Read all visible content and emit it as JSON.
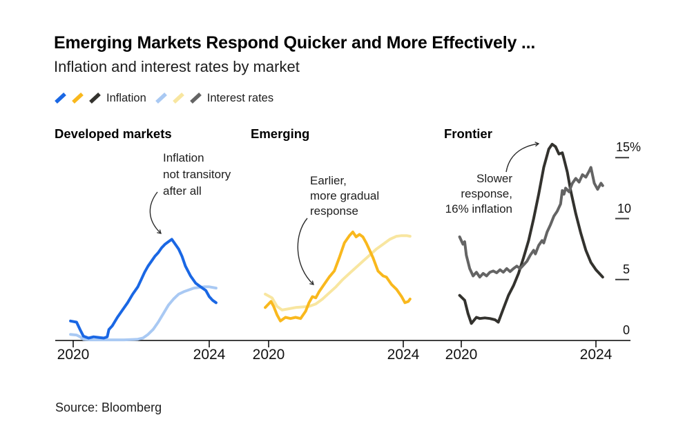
{
  "header": {
    "title": "Emerging Markets Respond Quicker and More Effectively ...",
    "subtitle": "Inflation and interest rates by market"
  },
  "legend": {
    "inflation_label": "Inflation",
    "interest_label": "Interest rates",
    "position": "top"
  },
  "source": "Source: Bloomberg",
  "chart_data": [
    {
      "type": "line",
      "title": "Developed markets",
      "x_tick_years": [
        2020,
        2024
      ],
      "x_tick_labels": [
        "2020",
        "2024"
      ],
      "y_tick_values": [
        15,
        10,
        5,
        0
      ],
      "y_tick_labels": [
        "15%",
        "10",
        "5",
        "0"
      ],
      "ylim": [
        0,
        17
      ],
      "xlim": [
        2019.9,
        2024.3
      ],
      "grid": false,
      "annotation": "Inflation\nnot transitory\nafter all",
      "series": [
        {
          "name": "Inflation",
          "color": "#1a67e4",
          "x": [
            2019.92,
            2020.1,
            2020.2,
            2020.3,
            2020.45,
            2020.6,
            2020.75,
            2020.9,
            2021.0,
            2021.05,
            2021.15,
            2021.3,
            2021.45,
            2021.6,
            2021.75,
            2021.9,
            2022.0,
            2022.1,
            2022.2,
            2022.3,
            2022.4,
            2022.5,
            2022.6,
            2022.7,
            2022.8,
            2022.9,
            2023.0,
            2023.1,
            2023.2,
            2023.3,
            2023.45,
            2023.6,
            2023.7,
            2023.8,
            2023.9,
            2024.0,
            2024.1,
            2024.2
          ],
          "y": [
            1.6,
            1.5,
            0.9,
            0.35,
            0.2,
            0.3,
            0.25,
            0.2,
            0.3,
            0.9,
            1.2,
            1.9,
            2.5,
            3.1,
            3.8,
            4.4,
            5.0,
            5.6,
            6.1,
            6.5,
            6.9,
            7.2,
            7.6,
            7.9,
            8.1,
            8.3,
            7.9,
            7.5,
            6.9,
            6.1,
            5.3,
            4.7,
            4.5,
            4.3,
            4.1,
            3.6,
            3.3,
            3.1
          ]
        },
        {
          "name": "Interest rates",
          "color": "#a9c9f3",
          "x": [
            2019.92,
            2020.1,
            2020.2,
            2020.3,
            2020.5,
            2020.75,
            2021.0,
            2021.25,
            2021.5,
            2021.75,
            2021.9,
            2022.05,
            2022.2,
            2022.35,
            2022.5,
            2022.65,
            2022.8,
            2022.95,
            2023.1,
            2023.25,
            2023.4,
            2023.55,
            2023.7,
            2023.85,
            2024.0,
            2024.1,
            2024.2
          ],
          "y": [
            0.5,
            0.45,
            0.3,
            0.1,
            0.05,
            0.05,
            0.05,
            0.05,
            0.05,
            0.08,
            0.1,
            0.2,
            0.5,
            0.9,
            1.5,
            2.2,
            2.9,
            3.4,
            3.8,
            4.0,
            4.15,
            4.3,
            4.35,
            4.4,
            4.4,
            4.35,
            4.3
          ]
        }
      ]
    },
    {
      "type": "line",
      "title": "Emerging",
      "x_tick_years": [
        2020,
        2024
      ],
      "x_tick_labels": [
        "2020",
        "2024"
      ],
      "y_tick_values": [
        15,
        10,
        5,
        0
      ],
      "y_tick_labels": [
        "15%",
        "10",
        "5",
        "0"
      ],
      "ylim": [
        0,
        17
      ],
      "xlim": [
        2019.9,
        2024.3
      ],
      "grid": false,
      "annotation": "Earlier,\nmore gradual\nresponse",
      "series": [
        {
          "name": "Inflation",
          "color": "#f9b81d",
          "x": [
            2019.9,
            2020.07,
            2020.15,
            2020.25,
            2020.35,
            2020.5,
            2020.65,
            2020.8,
            2020.95,
            2021.1,
            2021.2,
            2021.3,
            2021.4,
            2021.5,
            2021.65,
            2021.8,
            2021.95,
            2022.1,
            2022.25,
            2022.4,
            2022.5,
            2022.6,
            2022.7,
            2022.8,
            2022.9,
            2023.0,
            2023.1,
            2023.25,
            2023.4,
            2023.5,
            2023.65,
            2023.8,
            2023.95,
            2024.05,
            2024.15,
            2024.2
          ],
          "y": [
            2.7,
            3.2,
            2.8,
            2.1,
            1.6,
            1.9,
            1.8,
            1.9,
            1.8,
            2.4,
            3.1,
            3.6,
            3.5,
            4.0,
            4.6,
            5.2,
            5.7,
            6.8,
            8.0,
            8.6,
            8.9,
            8.5,
            8.7,
            8.5,
            8.0,
            7.4,
            6.8,
            5.7,
            5.3,
            5.2,
            4.6,
            4.2,
            3.6,
            3.1,
            3.2,
            3.4
          ]
        },
        {
          "name": "Interest rates",
          "color": "#f8e6a0",
          "x": [
            2019.9,
            2020.1,
            2020.25,
            2020.4,
            2020.6,
            2020.8,
            2021.0,
            2021.2,
            2021.4,
            2021.6,
            2021.8,
            2022.0,
            2022.2,
            2022.4,
            2022.6,
            2022.8,
            2023.0,
            2023.2,
            2023.4,
            2023.6,
            2023.8,
            2023.95,
            2024.1,
            2024.2
          ],
          "y": [
            3.8,
            3.5,
            2.8,
            2.5,
            2.6,
            2.7,
            2.75,
            2.8,
            3.0,
            3.4,
            3.9,
            4.4,
            5.0,
            5.5,
            6.0,
            6.5,
            7.0,
            7.5,
            7.9,
            8.3,
            8.55,
            8.6,
            8.6,
            8.55
          ]
        }
      ]
    },
    {
      "type": "line",
      "title": "Frontier",
      "x_tick_years": [
        2020,
        2024
      ],
      "x_tick_labels": [
        "2020",
        "2024"
      ],
      "y_tick_values": [
        15,
        10,
        5,
        0
      ],
      "y_tick_labels": [
        "15%",
        "10",
        "5",
        "0"
      ],
      "ylim": [
        0,
        17
      ],
      "xlim": [
        2019.9,
        2024.3
      ],
      "grid": false,
      "annotation": "Slower\nresponse,\n16% inflation",
      "series": [
        {
          "name": "Inflation",
          "color": "#33322e",
          "x": [
            2019.95,
            2020.1,
            2020.2,
            2020.3,
            2020.45,
            2020.55,
            2020.7,
            2020.85,
            2021.0,
            2021.1,
            2021.25,
            2021.4,
            2021.55,
            2021.7,
            2021.85,
            2022.0,
            2022.15,
            2022.3,
            2022.45,
            2022.6,
            2022.7,
            2022.8,
            2022.9,
            2023.0,
            2023.05,
            2023.15,
            2023.25,
            2023.4,
            2023.55,
            2023.7,
            2023.85,
            2024.0,
            2024.1,
            2024.2
          ],
          "y": [
            3.7,
            3.3,
            2.2,
            1.4,
            1.9,
            1.8,
            1.85,
            1.8,
            1.7,
            1.5,
            2.6,
            3.7,
            4.5,
            5.5,
            6.8,
            8.2,
            10.0,
            12.0,
            14.2,
            15.7,
            16.1,
            15.9,
            15.3,
            15.4,
            14.9,
            13.8,
            12.3,
            10.4,
            8.8,
            7.4,
            6.4,
            5.8,
            5.5,
            5.2
          ]
        },
        {
          "name": "Interest rates",
          "color": "#646464",
          "x": [
            2019.95,
            2020.05,
            2020.1,
            2020.15,
            2020.25,
            2020.35,
            2020.45,
            2020.55,
            2020.65,
            2020.75,
            2020.85,
            2020.95,
            2021.05,
            2021.15,
            2021.25,
            2021.35,
            2021.45,
            2021.55,
            2021.65,
            2021.75,
            2021.85,
            2021.95,
            2022.05,
            2022.15,
            2022.2,
            2022.3,
            2022.4,
            2022.45,
            2022.55,
            2022.65,
            2022.75,
            2022.85,
            2022.95,
            2023.0,
            2023.05,
            2023.1,
            2023.2,
            2023.3,
            2023.4,
            2023.5,
            2023.6,
            2023.7,
            2023.8,
            2023.85,
            2023.95,
            2024.05,
            2024.15,
            2024.2
          ],
          "y": [
            8.5,
            7.9,
            8.1,
            7.0,
            5.9,
            5.3,
            5.6,
            5.2,
            5.5,
            5.3,
            5.6,
            5.7,
            5.55,
            5.8,
            5.6,
            5.9,
            5.65,
            5.9,
            6.1,
            5.9,
            6.2,
            6.5,
            7.0,
            7.4,
            7.1,
            7.8,
            8.2,
            8.0,
            8.9,
            9.5,
            10.2,
            10.6,
            11.2,
            12.3,
            12.0,
            12.5,
            12.2,
            12.9,
            13.3,
            13.0,
            13.6,
            13.4,
            13.9,
            14.2,
            12.9,
            12.4,
            12.9,
            12.7
          ]
        }
      ]
    }
  ]
}
